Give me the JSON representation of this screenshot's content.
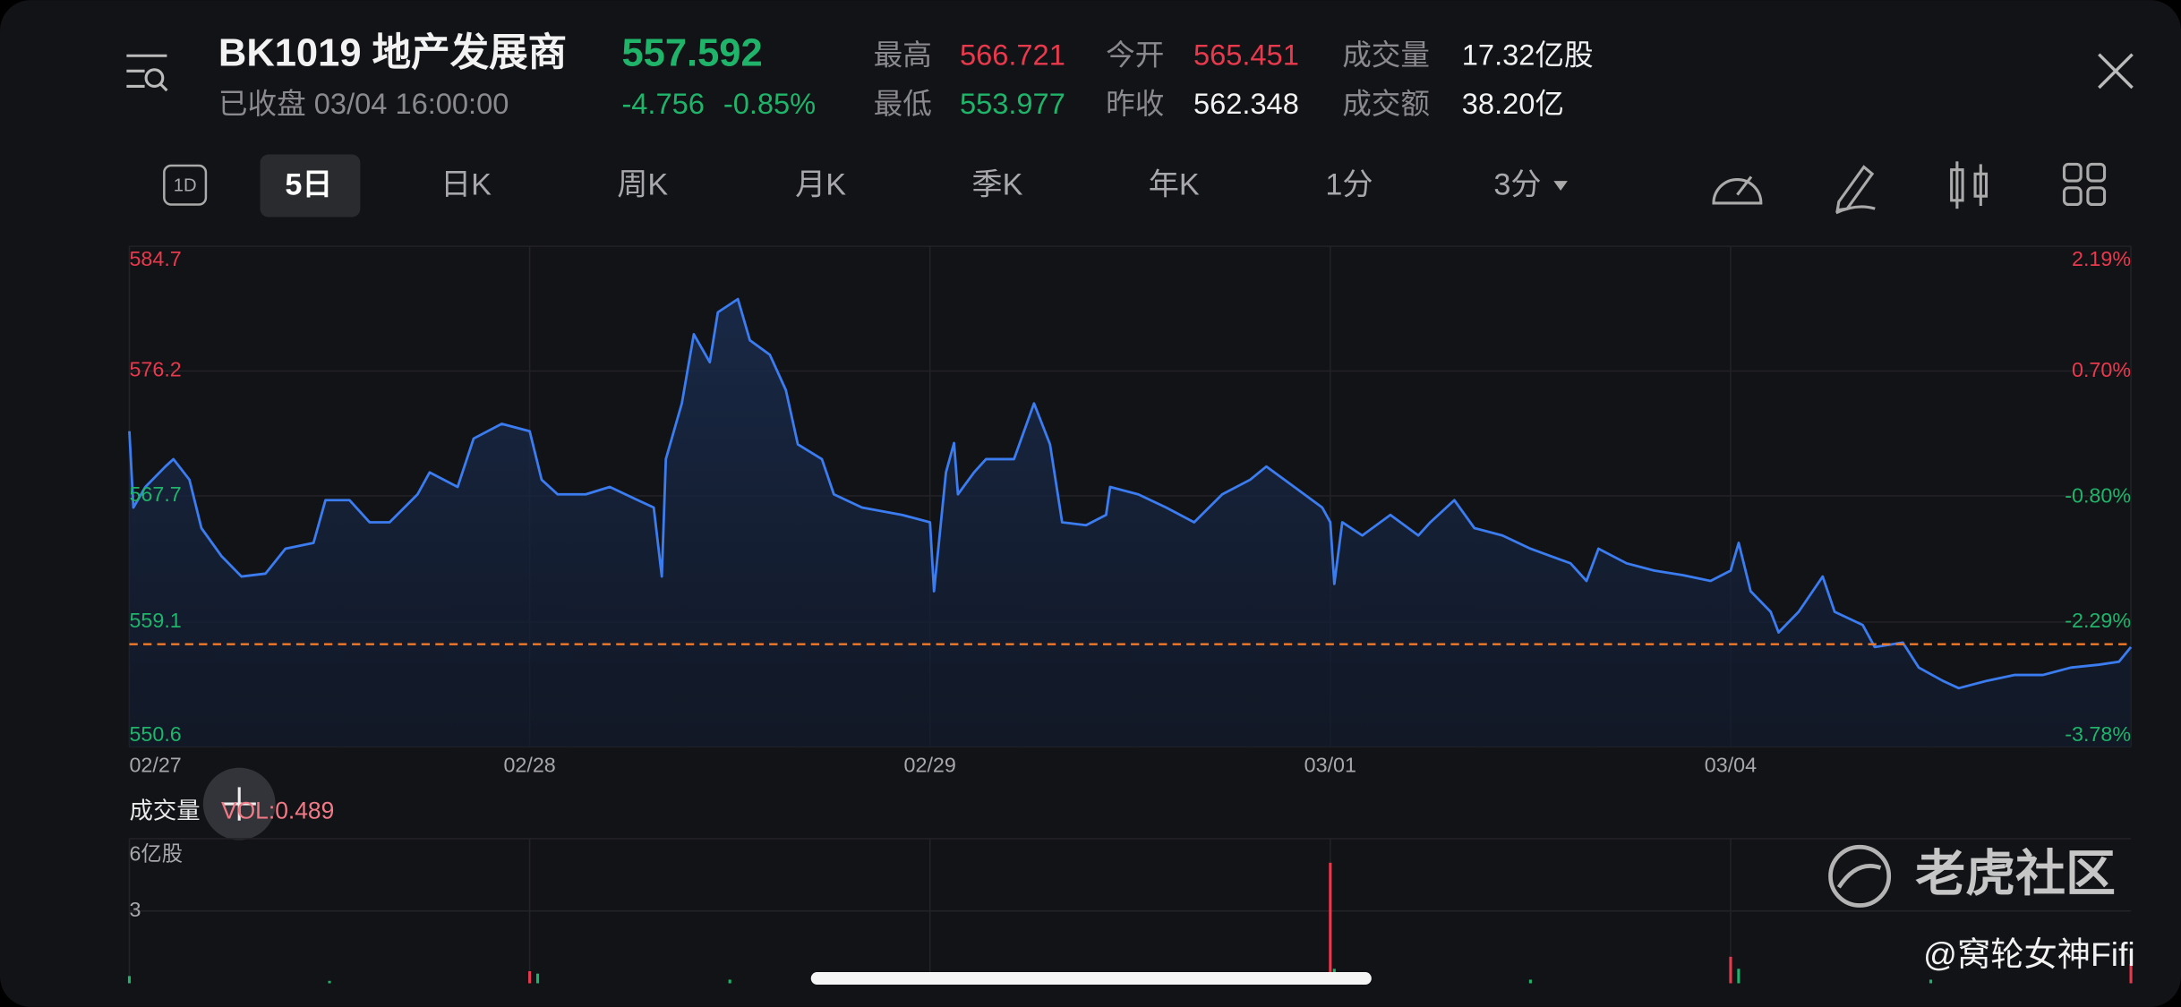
{
  "header": {
    "title": "BK1019  地产发展商",
    "price": 557.592,
    "status": "已收盘 03/04 16:00:00",
    "change": -4.756,
    "change_pct": "-0.85%",
    "stats": [
      {
        "label": "最高",
        "value": 566.721,
        "color": "#e8394d"
      },
      {
        "label": "最低",
        "value": 553.977,
        "color": "#1fb46a"
      },
      {
        "label": "今开",
        "value": 565.451,
        "color": "#e8394d"
      },
      {
        "label": "昨收",
        "value": 562.348,
        "color": "#f2f2f2"
      },
      {
        "label": "成交量",
        "value": "17.32亿股",
        "color": "#f2f2f2"
      },
      {
        "label": "成交额",
        "value": "38.20亿",
        "color": "#f2f2f2"
      }
    ]
  },
  "tabs": [
    "1D",
    "5日",
    "日K",
    "周K",
    "月K",
    "季K",
    "年K",
    "1分",
    "3分"
  ],
  "volume_label": "成交量",
  "volume_value": "VOL:0.489",
  "watermark": {
    "brand": "老虎社区",
    "author": "@窝轮女神Fifi"
  },
  "chart_data": [
    {
      "type": "line",
      "color": "#3b7cf0",
      "grid": true,
      "x": [
        0,
        0.01,
        0.04,
        0.09,
        0.11,
        0.15,
        0.18,
        0.23,
        0.28,
        0.34,
        0.39,
        0.46,
        0.49,
        0.55,
        0.6,
        0.65,
        0.72,
        0.75,
        0.82,
        0.86,
        0.93,
        1.0,
        1.03,
        1.07,
        1.14,
        1.2,
        1.27,
        1.31,
        1.33,
        1.34,
        1.38,
        1.41,
        1.45,
        1.47,
        1.52,
        1.55,
        1.6,
        1.64,
        1.67,
        1.73,
        1.76,
        1.83,
        1.93,
        2.0,
        2.01,
        2.04,
        2.06,
        2.07,
        2.11,
        2.14,
        2.21,
        2.26,
        2.3,
        2.33,
        2.39,
        2.44,
        2.45,
        2.52,
        2.59,
        2.66,
        2.73,
        2.8,
        2.84,
        2.91,
        2.98,
        3.0,
        3.01,
        3.03,
        3.08,
        3.15,
        3.22,
        3.25,
        3.31,
        3.36,
        3.43,
        3.5,
        3.55,
        3.6,
        3.64,
        3.67,
        3.74,
        3.81,
        3.88,
        3.95,
        4.0,
        4.02,
        4.05,
        4.1,
        4.12,
        4.17,
        4.23,
        4.26,
        4.33,
        4.36,
        4.43,
        4.47,
        4.53,
        4.57,
        4.64,
        4.71,
        4.78,
        4.85,
        4.92,
        4.97,
        5.0
      ],
      "values": [
        572.1,
        566.9,
        568.3,
        569.7,
        570.2,
        568.8,
        565.5,
        563.6,
        562.2,
        562.4,
        564.1,
        564.5,
        567.4,
        567.4,
        565.9,
        565.9,
        567.8,
        569.3,
        568.3,
        571.6,
        572.6,
        572.1,
        568.8,
        567.8,
        567.8,
        568.3,
        567.4,
        566.9,
        562.2,
        570.2,
        574.0,
        578.7,
        576.8,
        580.2,
        581.1,
        578.3,
        577.3,
        574.9,
        571.2,
        570.2,
        567.8,
        566.9,
        566.4,
        565.9,
        561.2,
        569.3,
        571.3,
        567.8,
        569.3,
        570.2,
        570.2,
        574.0,
        571.2,
        565.9,
        565.7,
        566.4,
        568.3,
        567.8,
        566.9,
        565.9,
        567.8,
        568.8,
        569.7,
        568.3,
        566.9,
        565.9,
        561.7,
        565.9,
        565.0,
        566.4,
        565.0,
        565.9,
        567.4,
        565.5,
        565.0,
        564.1,
        563.6,
        563.1,
        561.9,
        564.1,
        563.1,
        562.6,
        562.3,
        561.9,
        562.6,
        564.5,
        561.2,
        559.8,
        558.4,
        559.8,
        562.2,
        559.8,
        558.9,
        557.4,
        557.7,
        556.0,
        555.1,
        554.6,
        555.1,
        555.5,
        555.5,
        556.0,
        556.2,
        556.4,
        557.4
      ],
      "xlim": [
        0,
        5
      ],
      "xticks": [
        {
          "value": 0,
          "label": "02/27"
        },
        {
          "value": 1,
          "label": "02/28"
        },
        {
          "value": 2,
          "label": "02/29"
        },
        {
          "value": 3,
          "label": "03/01"
        },
        {
          "value": 4,
          "label": "03/04"
        }
      ],
      "ylim": [
        550.6,
        584.7
      ],
      "yticks": [
        584.7,
        576.2,
        567.7,
        559.1,
        550.6
      ],
      "y2lim": [
        -3.78,
        2.19
      ],
      "y2ticks": [
        {
          "value": 2.19,
          "label": "2.19%"
        },
        {
          "value": 0.7,
          "label": "0.70%"
        },
        {
          "value": -0.8,
          "label": "-0.80%"
        },
        {
          "value": -2.29,
          "label": "-2.29%"
        },
        {
          "value": -3.78,
          "label": "-3.78%"
        }
      ]
    },
    {
      "type": "bar",
      "x": [
        0.0,
        0.5,
        1.0,
        1.02,
        1.5,
        2.0,
        2.5,
        3.0,
        3.01,
        3.5,
        4.0,
        4.02,
        4.5,
        5.0
      ],
      "values": [
        0.3,
        0.1,
        0.5,
        0.4,
        0.15,
        0.2,
        0.1,
        5.0,
        0.6,
        0.15,
        1.1,
        0.6,
        0.15,
        0.8
      ],
      "colors": [
        "#1fb46a",
        "#1fb46a",
        "#e8394d",
        "#1fb46a",
        "#1fb46a",
        "#e8394d",
        "#1fb46a",
        "#e8394d",
        "#1fb46a",
        "#1fb46a",
        "#e8394d",
        "#1fb46a",
        "#1fb46a",
        "#e8394d"
      ],
      "xlim": [
        0,
        5
      ],
      "ylim": [
        0,
        6
      ],
      "yticks": [
        {
          "value": 6,
          "label": "6亿股"
        },
        3
      ]
    }
  ]
}
